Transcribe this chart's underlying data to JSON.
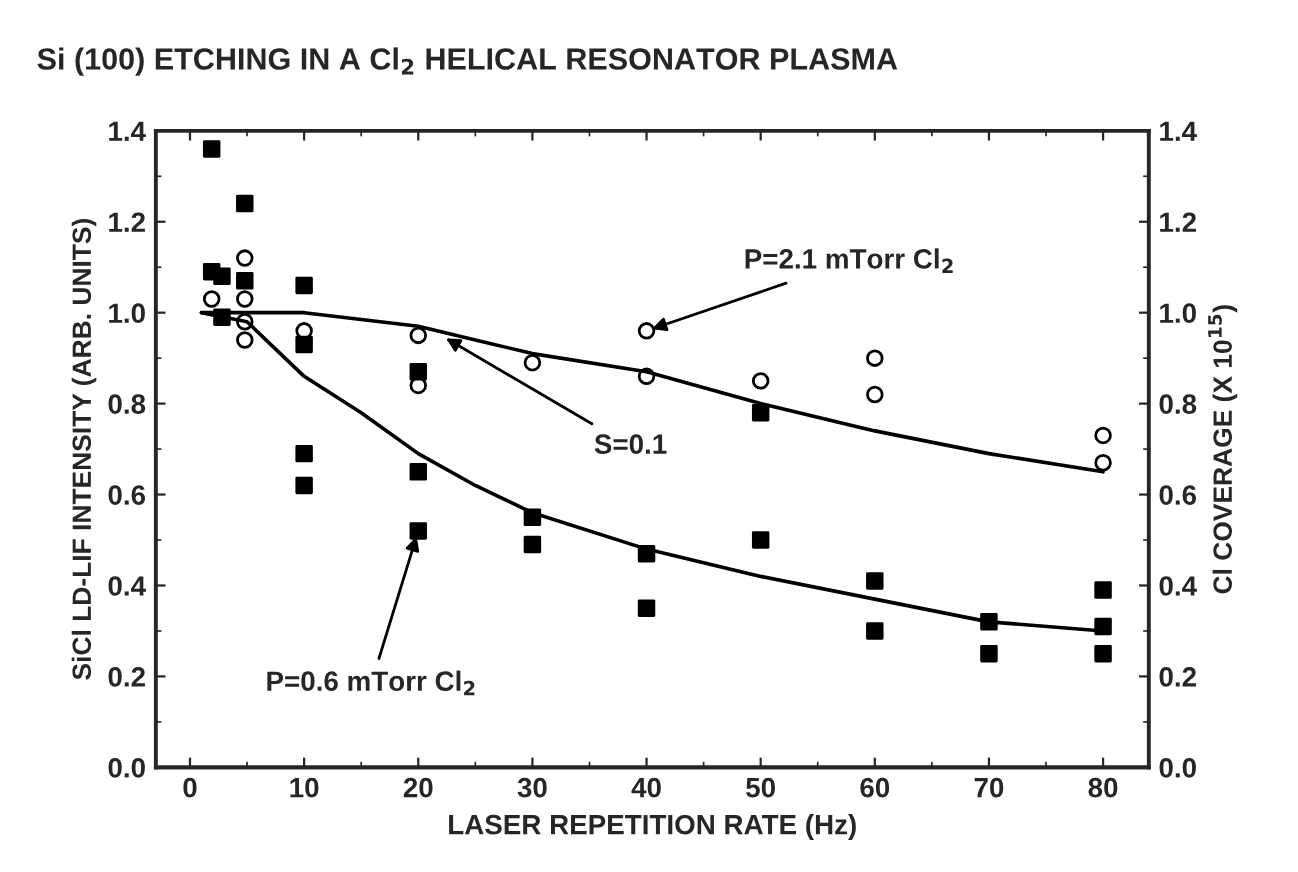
{
  "chart_data": {
    "type": "scatter",
    "title": "Si (100) ETCHING IN A Cl$_{2}$ HELICAL RESONATOR PLASMA",
    "xlabel": "LASER REPETITION RATE (Hz)",
    "ylabel": "SiCl LD-LIF INTENSITY (ARB. UNITS)",
    "y2label": "Cl COVERAGE (X 10$^{15}$)",
    "xlim": [
      -3,
      84
    ],
    "xticks": [
      0,
      10,
      20,
      30,
      40,
      50,
      60,
      70,
      80
    ],
    "ylim": [
      0,
      1.4
    ],
    "yticks": [
      {
        "value": 0,
        "label": "0.0"
      },
      {
        "value": 0.2,
        "label": "0.2"
      },
      {
        "value": 0.4,
        "label": "0.4"
      },
      {
        "value": 0.6,
        "label": "0.6"
      },
      {
        "value": 0.8,
        "label": "0.8"
      },
      {
        "value": 1.0,
        "label": "1.0"
      },
      {
        "value": 1.2,
        "label": "1.2"
      },
      {
        "value": 1.4,
        "label": "1.4"
      }
    ],
    "y2lim": [
      0,
      1.4
    ],
    "y2ticks": [
      {
        "value": 0,
        "label": "0.0"
      },
      {
        "value": 0.2,
        "label": "0.2"
      },
      {
        "value": 0.4,
        "label": "0.4"
      },
      {
        "value": 0.6,
        "label": "0.6"
      },
      {
        "value": 0.8,
        "label": "0.8"
      },
      {
        "value": 1.0,
        "label": "1.0"
      },
      {
        "value": 1.2,
        "label": "1.2"
      },
      {
        "value": 1.4,
        "label": "1.4"
      }
    ],
    "grid": false,
    "legend": false,
    "series": [
      {
        "marker": "square",
        "color": "#000000",
        "x": [
          1.9,
          1.9,
          2.8,
          2.8,
          4.8,
          4.8,
          10,
          10,
          10,
          10,
          20,
          20,
          20,
          30,
          30,
          40,
          40,
          50,
          50,
          60,
          60,
          70,
          70,
          80,
          80,
          80
        ],
        "values": [
          1.36,
          1.09,
          1.08,
          0.99,
          1.24,
          1.07,
          1.06,
          0.93,
          0.69,
          0.62,
          0.87,
          0.65,
          0.52,
          0.55,
          0.49,
          0.47,
          0.35,
          0.78,
          0.5,
          0.41,
          0.3,
          0.32,
          0.25,
          0.39,
          0.31,
          0.25
        ]
      },
      {
        "marker": "circle",
        "color": "#000000",
        "x": [
          1.9,
          4.8,
          4.8,
          4.8,
          4.8,
          10,
          20,
          20,
          30,
          40,
          40,
          50,
          60,
          60,
          80,
          80
        ],
        "values": [
          1.03,
          1.12,
          1.03,
          0.98,
          0.94,
          0.96,
          0.95,
          0.84,
          0.89,
          0.96,
          0.86,
          0.85,
          0.9,
          0.82,
          0.73,
          0.67
        ]
      },
      {
        "type": "line",
        "color": "#000000",
        "x": [
          1,
          5,
          10,
          20,
          25,
          30,
          40,
          50,
          60,
          70,
          80
        ],
        "values": [
          1.0,
          1.0,
          1.0,
          0.97,
          0.94,
          0.91,
          0.87,
          0.8,
          0.74,
          0.69,
          0.65
        ]
      },
      {
        "type": "line",
        "color": "#000000",
        "x": [
          1,
          5,
          10,
          15,
          20,
          25,
          30,
          40,
          50,
          60,
          70,
          80
        ],
        "values": [
          1.0,
          0.98,
          0.86,
          0.78,
          0.69,
          0.62,
          0.56,
          0.48,
          0.42,
          0.37,
          0.32,
          0.3
        ]
      }
    ],
    "annotations": [
      {
        "text": "P=2.1 mTorr Cl$_{2}$",
        "x": 40,
        "y": 0.96
      },
      {
        "text": "S=0.1",
        "x": 22,
        "y": 0.95
      },
      {
        "text": "P=0.6 mTorr Cl$_{2}$",
        "x": 20,
        "y": 0.52
      }
    ]
  }
}
